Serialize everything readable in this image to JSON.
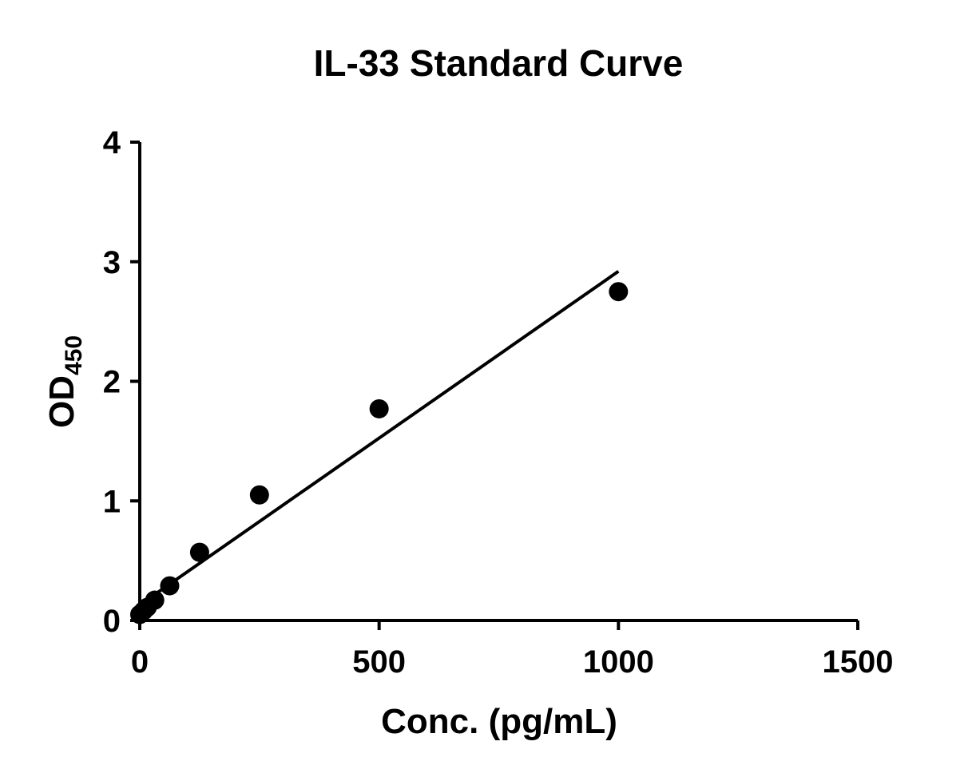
{
  "chart_data": {
    "type": "scatter",
    "title": "IL-33 Standard Curve",
    "xlabel": "Conc. (pg/mL)",
    "ylabel": {
      "main": "OD",
      "subscript": "450"
    },
    "xlim": [
      0,
      1500
    ],
    "ylim": [
      0,
      4
    ],
    "xticks": [
      "0",
      "500",
      "1000",
      "1500"
    ],
    "yticks": [
      "0",
      "1",
      "2",
      "3",
      "4"
    ],
    "grid": false,
    "legend": "none",
    "series": [
      {
        "points": [
          {
            "x": 0,
            "y": 0.05
          },
          {
            "x": 7.8,
            "y": 0.08
          },
          {
            "x": 15.6,
            "y": 0.11
          },
          {
            "x": 31.2,
            "y": 0.17
          },
          {
            "x": 62.5,
            "y": 0.29
          },
          {
            "x": 125,
            "y": 0.57
          },
          {
            "x": 250,
            "y": 1.05
          },
          {
            "x": 500,
            "y": 1.77
          },
          {
            "x": 1000,
            "y": 2.75
          }
        ],
        "color": "#000000"
      }
    ],
    "fit_line": {
      "x": [
        0,
        1000
      ],
      "y": [
        0.13,
        2.92
      ],
      "color": "#000000"
    }
  }
}
